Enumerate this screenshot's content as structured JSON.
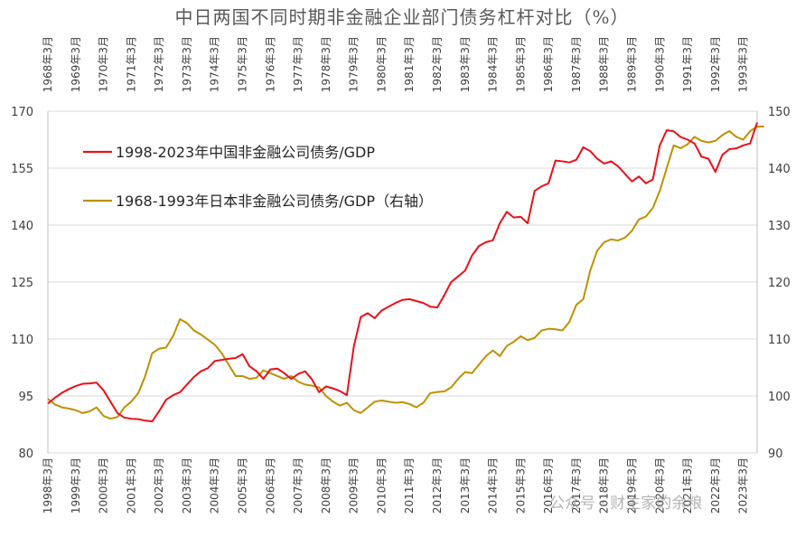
{
  "chart_data": {
    "type": "line",
    "title": "中日两国不同时期非金融企业部门债务杠杆对比（%）",
    "watermark": "公众号 · 财主家的余粮",
    "colors": {
      "china": "#e8111a",
      "japan": "#bf9000",
      "grid": "#d9d9d9",
      "axis": "#bfbfbf"
    },
    "bottom_axis": {
      "labels": [
        "1998年3月",
        "1999年3月",
        "2000年3月",
        "2001年3月",
        "2002年3月",
        "2003年3月",
        "2004年3月",
        "2005年3月",
        "2006年3月",
        "2007年3月",
        "2008年3月",
        "2009年3月",
        "2010年3月",
        "2011年3月",
        "2012年3月",
        "2013年3月",
        "2014年3月",
        "2015年3月",
        "2016年3月",
        "2017年3月",
        "2018年3月",
        "2019年3月",
        "2020年3月",
        "2021年3月",
        "2022年3月",
        "2023年3月"
      ]
    },
    "top_axis": {
      "labels": [
        "1968年3月",
        "1969年3月",
        "1970年3月",
        "1971年3月",
        "1972年3月",
        "1973年3月",
        "1974年3月",
        "1975年3月",
        "1976年3月",
        "1977年3月",
        "1978年3月",
        "1979年3月",
        "1980年3月",
        "1981年3月",
        "1982年3月",
        "1983年3月",
        "1984年3月",
        "1985年3月",
        "1986年3月",
        "1987年3月",
        "1988年3月",
        "1989年3月",
        "1990年3月",
        "1991年3月",
        "1992年3月",
        "1993年3月"
      ]
    },
    "y_left": {
      "min": 80,
      "max": 170,
      "ticks": [
        80,
        95,
        110,
        125,
        140,
        155,
        170
      ]
    },
    "y_right": {
      "min": 90,
      "max": 150,
      "ticks": [
        90,
        100,
        110,
        120,
        130,
        140,
        150
      ]
    },
    "grid": true,
    "legend_position": "upper-left",
    "series": [
      {
        "name": "1998-2023年中国非金融公司债务/GDP",
        "axis": "left",
        "color_key": "china",
        "start_quarter_label": "1998年3月",
        "values": [
          93,
          94.5,
          95.8,
          96.8,
          97.6,
          98.2,
          98.3,
          98.5,
          96.5,
          93.5,
          90.5,
          89.3,
          89,
          88.9,
          88.5,
          88.3,
          91,
          94,
          95.2,
          96,
          98,
          100,
          101.5,
          102.3,
          104.2,
          104.5,
          104.8,
          105,
          106,
          102.8,
          101.5,
          99.5,
          102,
          102.2,
          101,
          99.5,
          100.8,
          101.5,
          99.3,
          96,
          97.5,
          97,
          96.3,
          95.2,
          108,
          115.8,
          116.8,
          115.5,
          117.5,
          118.5,
          119.5,
          120.3,
          120.5,
          120,
          119.5,
          118.5,
          118.3,
          121.5,
          125,
          126.5,
          128,
          132,
          134.5,
          135.5,
          136,
          140.5,
          143.5,
          142,
          142.2,
          140.5,
          149,
          150.2,
          151,
          157,
          156.8,
          156.5,
          157.2,
          160.5,
          159.5,
          157.5,
          156.2,
          156.8,
          155.5,
          153.5,
          151.5,
          152.8,
          151,
          152,
          161,
          165,
          164.7,
          163.2,
          162.5,
          161.5,
          158,
          157.5,
          154,
          158.5,
          160,
          160.2,
          161,
          161.5,
          167
        ]
      },
      {
        "name": "1968-1993年日本非金融公司债务/GDP（右轴）",
        "axis": "right",
        "color_key": "japan",
        "start_quarter_label": "1968年3月",
        "values": [
          99.5,
          98.5,
          98,
          97.8,
          97.5,
          97,
          97.3,
          98,
          96.5,
          96,
          96.3,
          98,
          99,
          100.5,
          103.5,
          107.5,
          108.3,
          108.5,
          110.5,
          113.5,
          112.8,
          111.5,
          110.8,
          109.9,
          109,
          107.5,
          105.5,
          103.5,
          103.5,
          103,
          103.2,
          104.5,
          104,
          103.5,
          103,
          103.5,
          102.5,
          102,
          101.8,
          101.5,
          100,
          99,
          98.3,
          98.8,
          97.5,
          97,
          98,
          99,
          99.2,
          99,
          98.8,
          98.9,
          98.6,
          98,
          98.8,
          100.5,
          100.7,
          100.8,
          101.5,
          103,
          104.2,
          104,
          105.5,
          107,
          108,
          107,
          108.8,
          109.5,
          110.5,
          109.8,
          110.2,
          111.5,
          111.8,
          111.7,
          111.5,
          113,
          116,
          117,
          122,
          125.5,
          127,
          127.5,
          127.3,
          127.8,
          129,
          131,
          131.5,
          133,
          136,
          140,
          144,
          143.5,
          144.2,
          145.5,
          144.8,
          144.5,
          144.8,
          145.8,
          146.5,
          145.5,
          145,
          146.5,
          147.3,
          147.3
        ]
      }
    ]
  }
}
